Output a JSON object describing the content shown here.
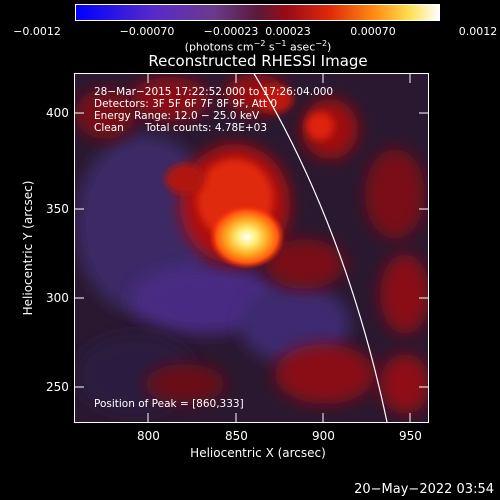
{
  "colorbar": {
    "ticks": [
      "−0.0012",
      "−0.00070",
      "−0.00023",
      "0.00023",
      "0.00070",
      "0.0012"
    ],
    "units_main": "(photons cm",
    "units_exp1": "−2",
    "units_mid": " s",
    "units_exp2": "−1",
    "units_end": " asec",
    "units_exp3": "−2",
    "units_close": ")"
  },
  "title": "Reconstructed RHESSI Image",
  "info": {
    "time_range": "28−Mar−2015 17:22:52.000 to 17:26:04.000",
    "detectors": "Detectors: 3F 5F 6F 7F 8F 9F, Att 0",
    "energy": "Energy Range: 12.0 − 25.0 keV",
    "method": "Clean",
    "counts": "Total counts: 4.78E+03",
    "peak": "Position of Peak = [860,333]"
  },
  "axes": {
    "xlabel": "Heliocentric X (arcsec)",
    "ylabel": "Heliocentric Y (arcsec)",
    "xticks": [
      "800",
      "850",
      "900",
      "950"
    ],
    "yticks": [
      "400",
      "350",
      "300",
      "250"
    ]
  },
  "timestamp": "20−May−2022 03:54",
  "colors": {
    "background": "#000000",
    "foreground": "#ffffff",
    "limb_line": "#ffffff"
  }
}
